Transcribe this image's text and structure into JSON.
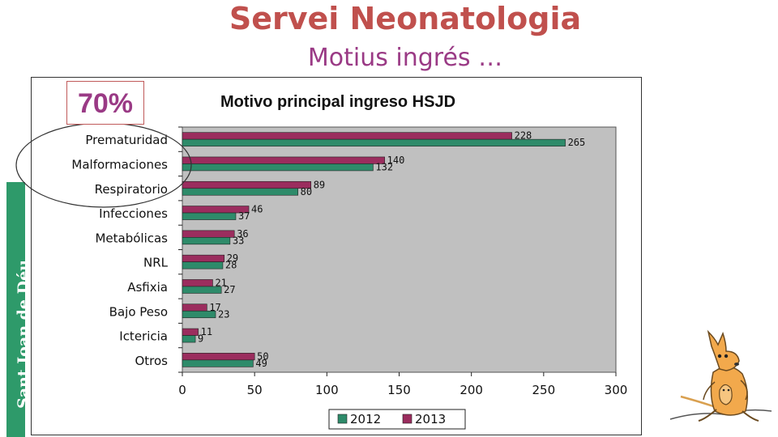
{
  "slide": {
    "title": "Servei Neonatologia",
    "subtitle": "Motius ingrés …",
    "highlight_percent": "70%",
    "brand_text": "Sant Joan de Déu",
    "colors": {
      "title": "#c0504d",
      "subtitle": "#9a3a85",
      "brand": "#2e9a6a",
      "plot_bg": "#c0c0c0"
    }
  },
  "chart_data": {
    "type": "bar",
    "orientation": "horizontal",
    "title": "Motivo principal ingreso HSJD",
    "categories": [
      "Prematuridad",
      "Malformaciones",
      "Respiratorio",
      "Infecciones",
      "Metabólicas",
      "NRL",
      "Asfixia",
      "Bajo Peso",
      "Ictericia",
      "Otros"
    ],
    "series": [
      {
        "name": "2012",
        "values": [
          265,
          132,
          80,
          37,
          33,
          28,
          27,
          23,
          9,
          49
        ],
        "color": "#2e8b6a"
      },
      {
        "name": "2013",
        "values": [
          228,
          140,
          89,
          46,
          36,
          29,
          21,
          17,
          11,
          50
        ],
        "color": "#9b2d5e"
      }
    ],
    "xlim": [
      0,
      300
    ],
    "xticks": [
      0,
      50,
      100,
      150,
      200,
      250,
      300
    ],
    "xlabel": "",
    "ylabel": "",
    "grid": false,
    "legend": "bottom"
  }
}
